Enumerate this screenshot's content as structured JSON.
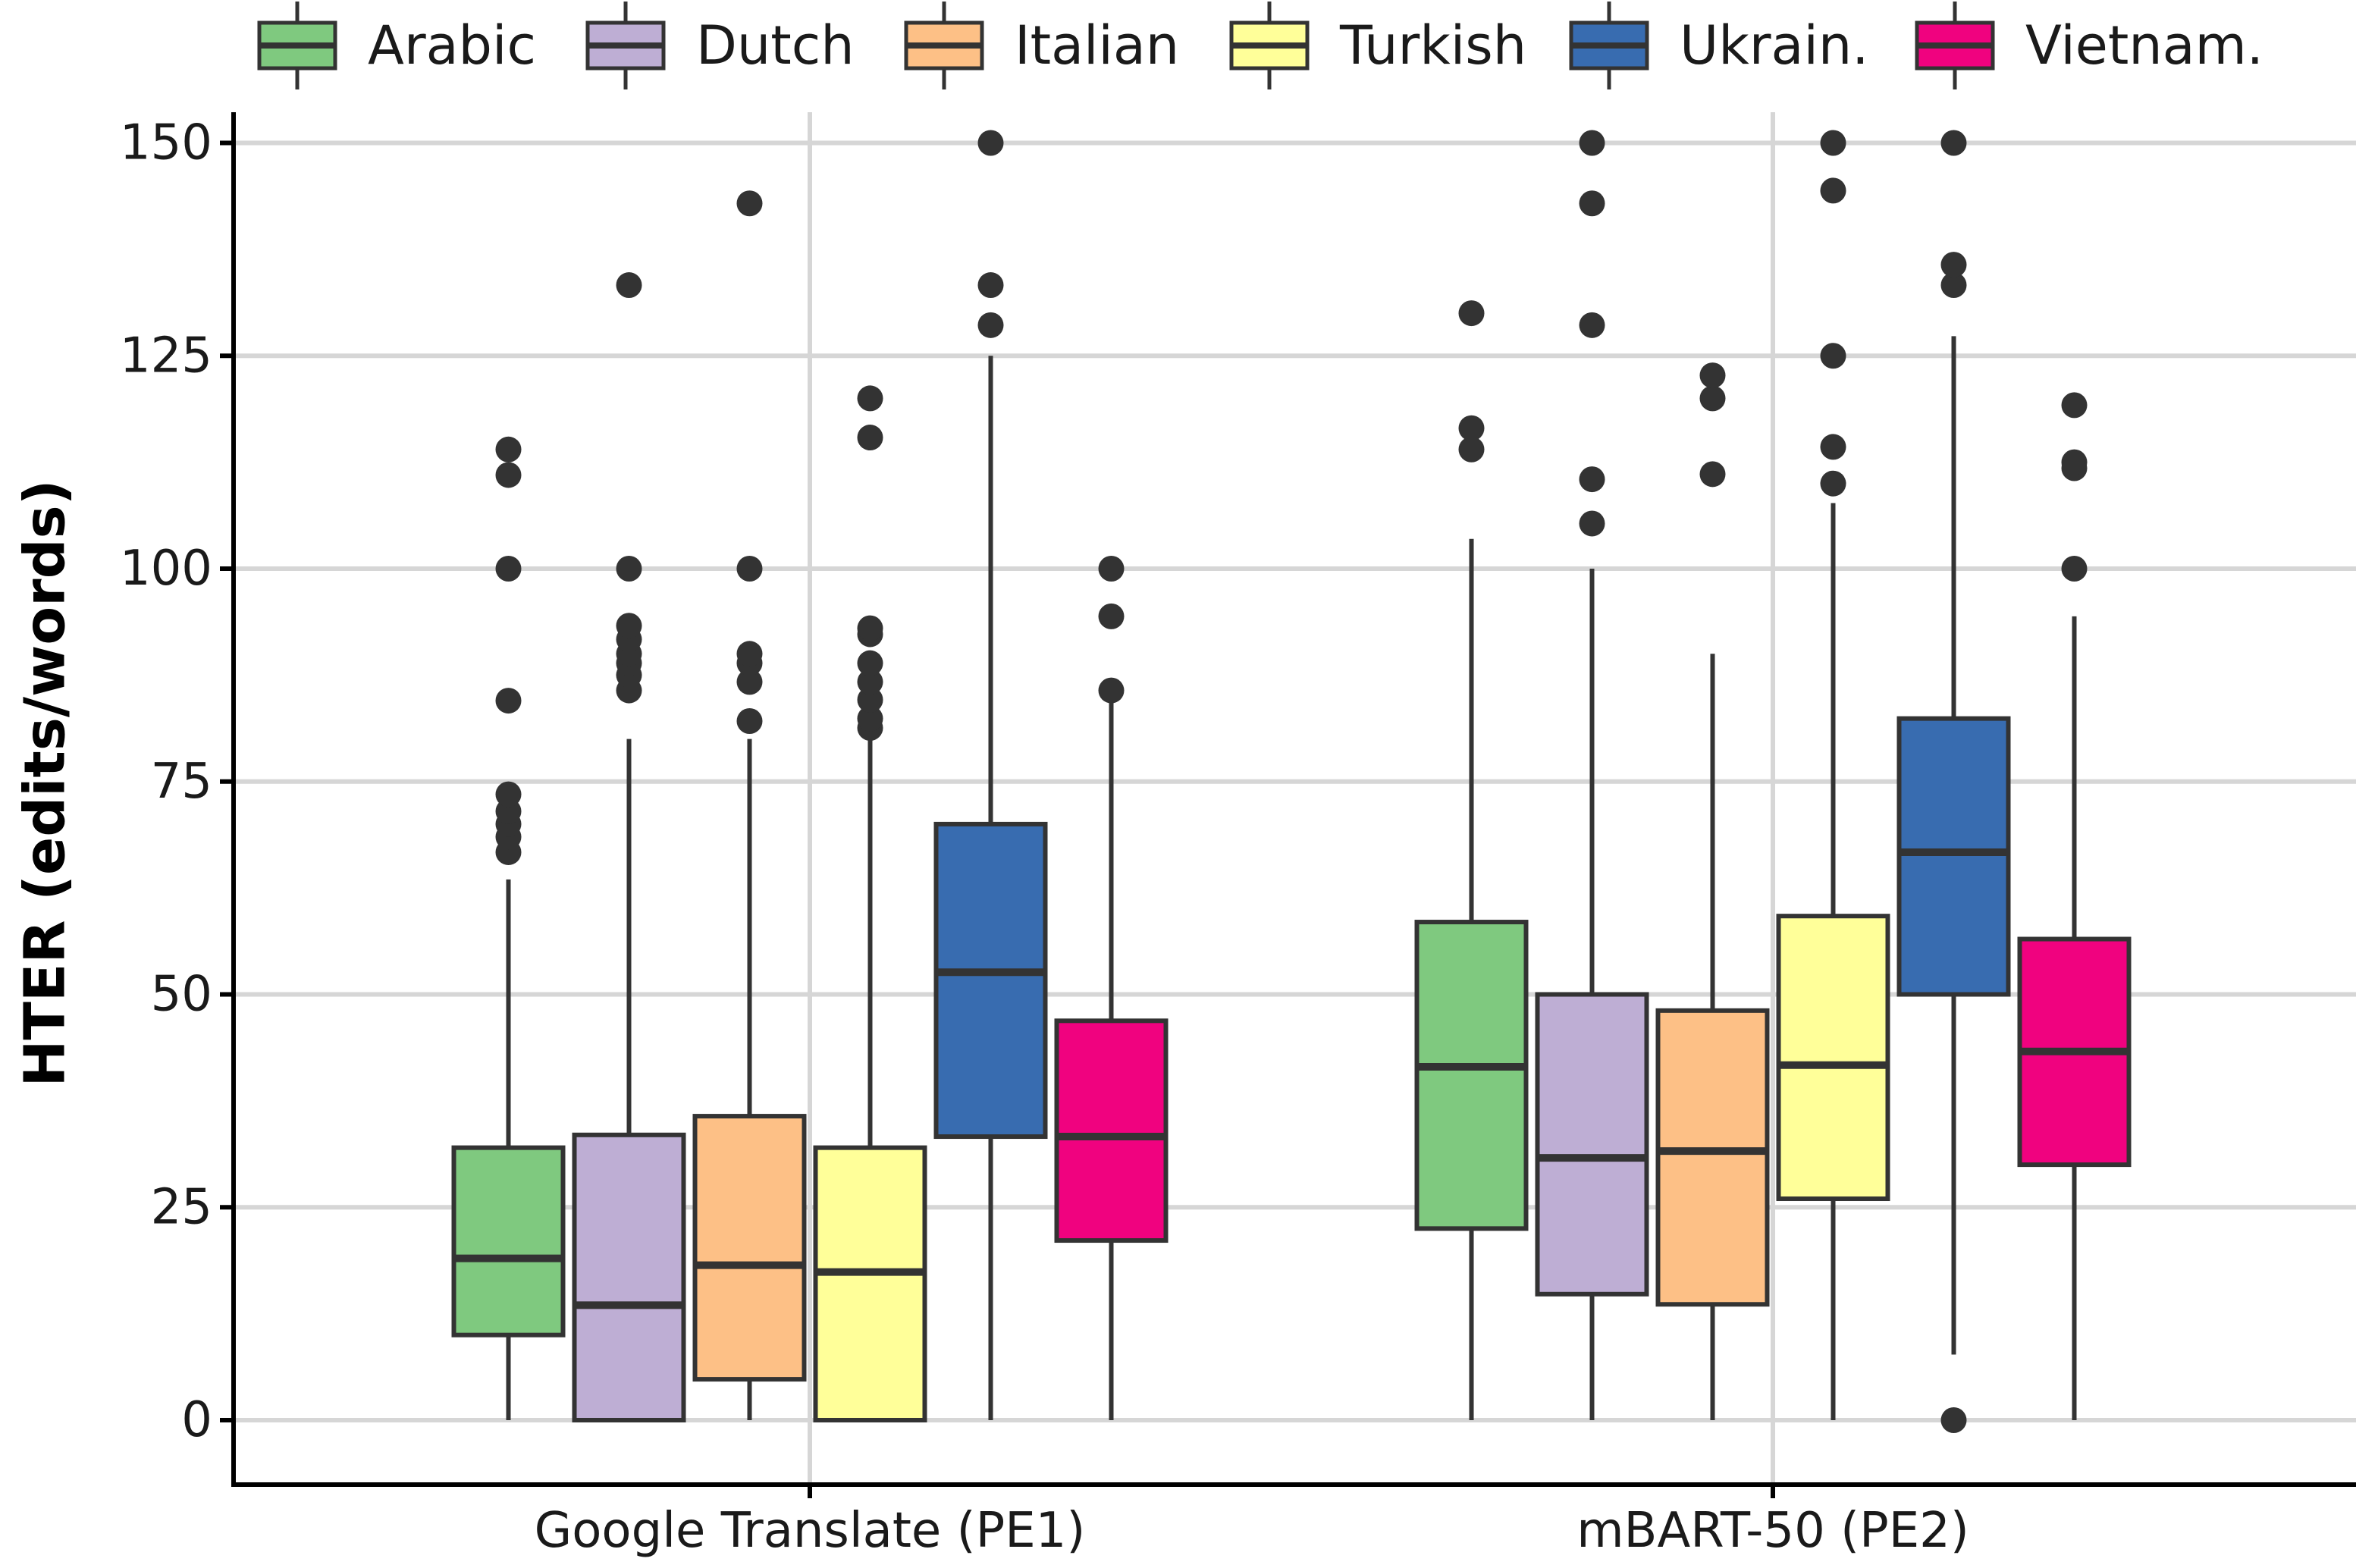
{
  "chart_data": {
    "type": "boxplot",
    "title": "",
    "xlabel": "",
    "ylabel": "HTER (edits/words)",
    "ylim": [
      -8,
      155
    ],
    "yticks": [
      0,
      25,
      50,
      75,
      100,
      125,
      150
    ],
    "ytick_labels": [
      "0",
      "25",
      "50",
      "75",
      "100",
      "125",
      "150"
    ],
    "grid": true,
    "legend_position": "top",
    "categories": [
      "Google Translate (PE1)",
      "mBART-50 (PE2)"
    ],
    "series": [
      {
        "name": "Arabic",
        "color": "#7fc97f",
        "boxes": [
          {
            "min": 0,
            "q1": 10,
            "median": 19,
            "q3": 32,
            "max": 63.5,
            "outliers": [
              66.7,
              68.5,
              70,
              71.5,
              73.5,
              84.5,
              100,
              111,
              114
            ]
          },
          {
            "min": 0,
            "q1": 22.5,
            "median": 41.5,
            "q3": 58.5,
            "max": 103.5,
            "outliers": [
              114,
              116.5,
              130
            ]
          }
        ]
      },
      {
        "name": "Dutch",
        "color": "#beaed4",
        "boxes": [
          {
            "min": 0,
            "q1": 0,
            "median": 13.5,
            "q3": 33.5,
            "max": 80,
            "outliers": [
              85.7,
              87.5,
              88.9,
              90,
              91.7,
              93.3,
              100,
              133.3
            ]
          },
          {
            "min": 0,
            "q1": 14.8,
            "median": 30.8,
            "q3": 50,
            "max": 100,
            "outliers": [
              105.3,
              110.5,
              128.6,
              142.9,
              150
            ]
          }
        ]
      },
      {
        "name": "Italian",
        "color": "#fdc086",
        "boxes": [
          {
            "min": 0,
            "q1": 4.8,
            "median": 18.2,
            "q3": 35.7,
            "max": 80,
            "outliers": [
              82.1,
              86.7,
              88.9,
              90,
              100,
              142.9
            ]
          },
          {
            "min": 0,
            "q1": 13.6,
            "median": 31.6,
            "q3": 48.1,
            "max": 90,
            "outliers": [
              111.1,
              120,
              122.7
            ]
          }
        ]
      },
      {
        "name": "Turkish",
        "color": "#ffff99",
        "boxes": [
          {
            "min": 0,
            "q1": 0,
            "median": 17.4,
            "q3": 32,
            "max": 80,
            "outliers": [
              81.3,
              82.4,
              84.6,
              86.7,
              88.9,
              92.3,
              93,
              115.4,
              120
            ]
          },
          {
            "min": 0,
            "q1": 26,
            "median": 41.7,
            "q3": 59.2,
            "max": 107.7,
            "outliers": [
              110,
              114.3,
              125,
              144.4,
              150
            ]
          }
        ]
      },
      {
        "name": "Ukrain.",
        "color": "#386cb0",
        "boxes": [
          {
            "min": 0,
            "q1": 33.3,
            "median": 52.6,
            "q3": 70,
            "max": 125,
            "outliers": [
              128.6,
              133.3,
              150
            ]
          },
          {
            "min": 7.7,
            "q1": 50,
            "median": 66.7,
            "q3": 82.4,
            "max": 127.3,
            "outliers": [
              0,
              133.3,
              135.7,
              150
            ]
          }
        ]
      },
      {
        "name": "Vietnam.",
        "color": "#f0027f",
        "boxes": [
          {
            "min": 0,
            "q1": 21.1,
            "median": 33.3,
            "q3": 46.9,
            "max": 85,
            "outliers": [
              85.7,
              94.4,
              100
            ]
          },
          {
            "min": 0,
            "q1": 30,
            "median": 43.3,
            "q3": 56.5,
            "max": 94.4,
            "outliers": [
              100,
              111.8,
              112.5,
              119.2
            ]
          }
        ]
      }
    ]
  }
}
